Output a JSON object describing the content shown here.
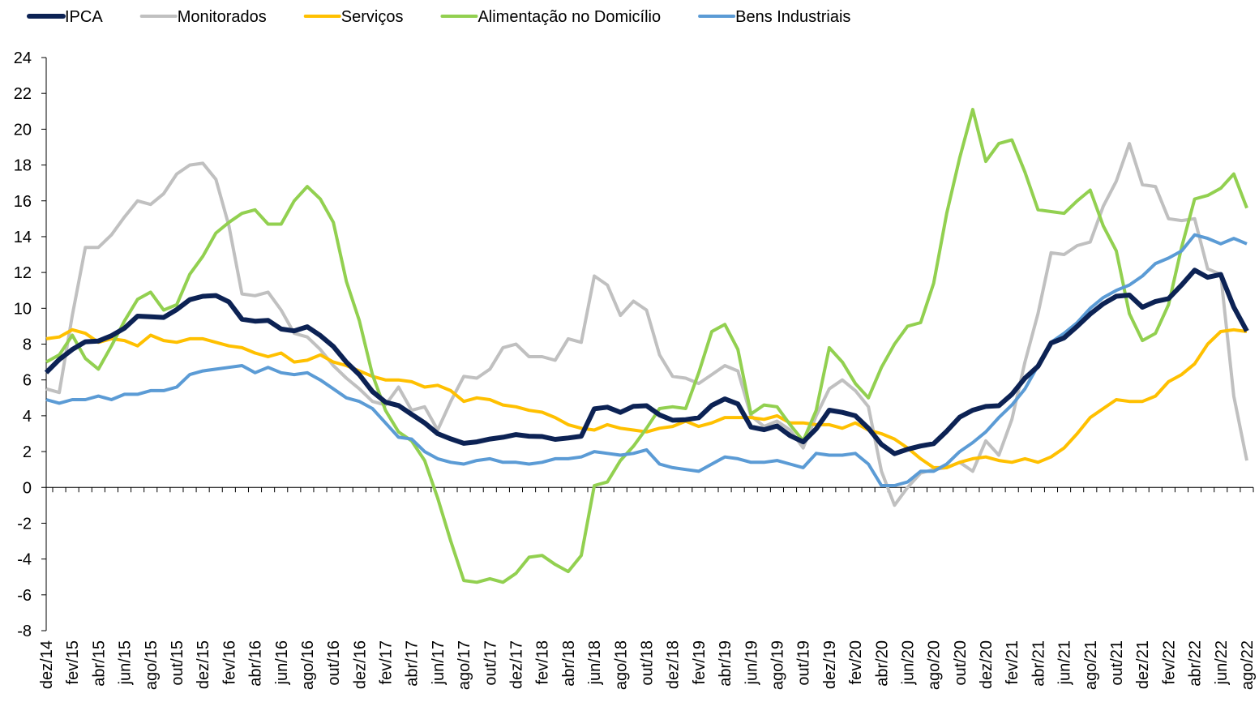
{
  "chart_data": {
    "type": "line",
    "categories": [
      "dez/14",
      null,
      "fev/15",
      null,
      "abr/15",
      null,
      "jun/15",
      null,
      "ago/15",
      null,
      "out/15",
      null,
      "dez/15",
      null,
      "fev/16",
      null,
      "abr/16",
      null,
      "jun/16",
      null,
      "ago/16",
      null,
      "out/16",
      null,
      "dez/16",
      null,
      "fev/17",
      null,
      "abr/17",
      null,
      "jun/17",
      null,
      "ago/17",
      null,
      "out/17",
      null,
      "dez/17",
      null,
      "fev/18",
      null,
      "abr/18",
      null,
      "jun/18",
      null,
      "ago/18",
      null,
      "out/18",
      null,
      "dez/18",
      null,
      "fev/19",
      null,
      "abr/19",
      null,
      "jun/19",
      null,
      "ago/19",
      null,
      "out/19",
      null,
      "dez/19",
      null,
      "fev/20",
      null,
      "abr/20",
      null,
      "jun/20",
      null,
      "ago/20",
      null,
      "out/20",
      null,
      "dez/20",
      null,
      "fev/21",
      null,
      "abr/21",
      null,
      "jun/21",
      null,
      "ago/21",
      null,
      "out/21",
      null,
      "dez/21",
      null,
      "fev/22",
      null,
      "abr/22",
      null,
      "jun/22",
      null,
      "ago/22"
    ],
    "series": [
      {
        "name": "IPCA",
        "color": "#0c2254",
        "values": [
          6.41,
          7.14,
          7.7,
          8.13,
          8.17,
          8.47,
          8.89,
          9.56,
          9.53,
          9.49,
          9.93,
          10.48,
          10.67,
          10.71,
          10.36,
          9.39,
          9.28,
          9.32,
          8.84,
          8.74,
          8.97,
          8.48,
          7.87,
          6.99,
          6.29,
          5.35,
          4.76,
          4.57,
          4.08,
          3.6,
          3.0,
          2.71,
          2.46,
          2.54,
          2.7,
          2.8,
          2.95,
          2.86,
          2.84,
          2.68,
          2.76,
          2.86,
          4.39,
          4.48,
          4.19,
          4.53,
          4.56,
          4.05,
          3.75,
          3.78,
          3.89,
          4.58,
          4.94,
          4.66,
          3.37,
          3.22,
          3.43,
          2.89,
          2.54,
          3.27,
          4.31,
          4.19,
          4.0,
          3.3,
          2.4,
          1.88,
          2.13,
          2.31,
          2.44,
          3.14,
          3.92,
          4.31,
          4.52,
          4.56,
          5.2,
          6.1,
          6.76,
          8.06,
          8.35,
          8.99,
          9.68,
          10.25,
          10.67,
          10.74,
          10.06,
          10.38,
          10.54,
          11.3,
          12.13,
          11.73,
          11.89,
          10.07,
          8.73
        ]
      },
      {
        "name": "Monitorados",
        "color": "#c0c0c0",
        "values": [
          5.5,
          5.3,
          9.6,
          13.4,
          13.4,
          14.1,
          15.1,
          16.0,
          15.8,
          16.4,
          17.5,
          18.0,
          18.1,
          17.2,
          14.6,
          10.8,
          10.7,
          10.9,
          9.9,
          8.6,
          8.4,
          7.7,
          6.8,
          6.1,
          5.5,
          4.8,
          4.6,
          5.6,
          4.3,
          4.5,
          3.2,
          4.8,
          6.2,
          6.1,
          6.6,
          7.8,
          8.0,
          7.3,
          7.3,
          7.1,
          8.3,
          8.1,
          11.8,
          11.3,
          9.6,
          10.4,
          9.9,
          7.4,
          6.2,
          6.1,
          5.8,
          6.3,
          6.8,
          6.5,
          4.0,
          3.4,
          3.7,
          3.2,
          2.2,
          4.0,
          5.5,
          6.0,
          5.4,
          4.5,
          0.9,
          -1.0,
          0.0,
          0.8,
          1.0,
          1.1,
          1.4,
          0.9,
          2.6,
          1.8,
          3.8,
          7.0,
          9.7,
          13.1,
          13.0,
          13.5,
          13.7,
          15.7,
          17.1,
          19.2,
          16.9,
          16.8,
          15.0,
          14.9,
          15.0,
          12.2,
          11.9,
          5.1,
          1.5
        ]
      },
      {
        "name": "Serviços",
        "color": "#ffc000",
        "values": [
          8.3,
          8.4,
          8.8,
          8.6,
          8.1,
          8.3,
          8.2,
          7.9,
          8.5,
          8.2,
          8.1,
          8.3,
          8.3,
          8.1,
          7.9,
          7.8,
          7.5,
          7.3,
          7.5,
          7.0,
          7.1,
          7.4,
          7.0,
          6.8,
          6.5,
          6.2,
          6.0,
          6.0,
          5.9,
          5.6,
          5.7,
          5.4,
          4.8,
          5.0,
          4.9,
          4.6,
          4.5,
          4.3,
          4.2,
          3.9,
          3.5,
          3.3,
          3.2,
          3.5,
          3.3,
          3.2,
          3.1,
          3.3,
          3.4,
          3.7,
          3.4,
          3.6,
          3.9,
          3.9,
          3.9,
          3.8,
          4.0,
          3.6,
          3.6,
          3.5,
          3.5,
          3.3,
          3.6,
          3.2,
          3.0,
          2.7,
          2.2,
          1.6,
          1.1,
          1.1,
          1.4,
          1.6,
          1.7,
          1.5,
          1.4,
          1.6,
          1.4,
          1.7,
          2.2,
          3.0,
          3.9,
          4.4,
          4.9,
          4.8,
          4.8,
          5.1,
          5.9,
          6.3,
          6.9,
          8.0,
          8.7,
          8.8,
          8.7
        ]
      },
      {
        "name": "Alimentação no Domicílio",
        "color": "#92d050",
        "values": [
          7.0,
          7.4,
          8.5,
          7.2,
          6.6,
          7.9,
          9.3,
          10.5,
          10.9,
          9.9,
          10.2,
          11.9,
          12.9,
          14.2,
          14.8,
          15.3,
          15.5,
          14.7,
          14.7,
          16.0,
          16.8,
          16.1,
          14.8,
          11.5,
          9.3,
          6.3,
          4.3,
          3.1,
          2.6,
          1.5,
          -0.6,
          -3.0,
          -5.2,
          -5.3,
          -5.1,
          -5.3,
          -4.8,
          -3.9,
          -3.8,
          -4.3,
          -4.7,
          -3.8,
          0.1,
          0.3,
          1.5,
          2.3,
          3.3,
          4.4,
          4.5,
          4.4,
          6.4,
          8.7,
          9.1,
          7.7,
          4.1,
          4.6,
          4.5,
          3.5,
          2.6,
          4.3,
          7.8,
          7.0,
          5.8,
          5.0,
          6.7,
          8.0,
          9.0,
          9.2,
          11.4,
          15.3,
          18.4,
          21.1,
          18.2,
          19.2,
          19.4,
          17.6,
          15.5,
          15.4,
          15.3,
          16.0,
          16.6,
          14.6,
          13.2,
          9.7,
          8.2,
          8.6,
          10.2,
          13.4,
          16.1,
          16.3,
          16.7,
          17.5,
          15.6
        ]
      },
      {
        "name": "Bens Industriais",
        "color": "#5b9bd5",
        "values": [
          4.9,
          4.7,
          4.9,
          4.9,
          5.1,
          4.9,
          5.2,
          5.2,
          5.4,
          5.4,
          5.6,
          6.3,
          6.5,
          6.6,
          6.7,
          6.8,
          6.4,
          6.7,
          6.4,
          6.3,
          6.4,
          6.0,
          5.5,
          5.0,
          4.8,
          4.4,
          3.6,
          2.8,
          2.7,
          2.0,
          1.6,
          1.4,
          1.3,
          1.5,
          1.6,
          1.4,
          1.4,
          1.3,
          1.4,
          1.6,
          1.6,
          1.7,
          2.0,
          1.9,
          1.8,
          1.9,
          2.1,
          1.3,
          1.1,
          1.0,
          0.9,
          1.3,
          1.7,
          1.6,
          1.4,
          1.4,
          1.5,
          1.3,
          1.1,
          1.9,
          1.8,
          1.8,
          1.9,
          1.3,
          0.1,
          0.1,
          0.3,
          0.9,
          0.9,
          1.3,
          2.0,
          2.5,
          3.1,
          3.9,
          4.6,
          5.5,
          6.8,
          8.1,
          8.6,
          9.2,
          10.0,
          10.6,
          11.0,
          11.3,
          11.8,
          12.5,
          12.8,
          13.2,
          14.1,
          13.9,
          13.6,
          13.9,
          13.6
        ]
      }
    ],
    "ylim": [
      -8,
      24
    ],
    "yticks": [
      -8,
      -6,
      -4,
      -2,
      0,
      2,
      4,
      6,
      8,
      10,
      12,
      14,
      16,
      18,
      20,
      22,
      24
    ],
    "legend": "top"
  }
}
